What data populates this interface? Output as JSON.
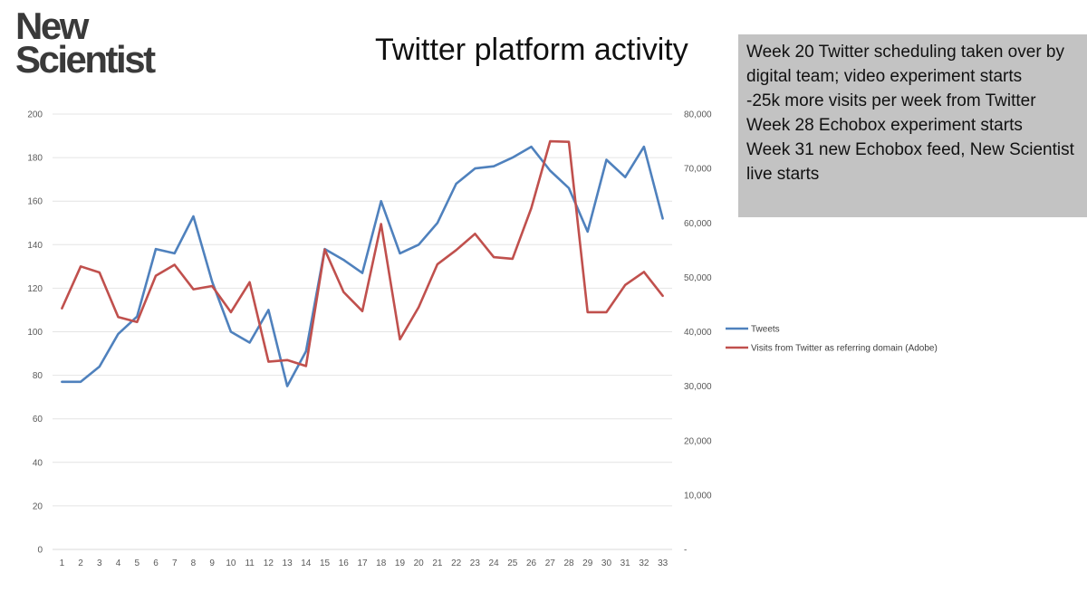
{
  "logo": {
    "line1": "New",
    "line2": "Scientist"
  },
  "title": "Twitter platform activity",
  "annotation": {
    "lines": [
      "Week 20 Twitter scheduling taken over by digital team;  video experiment starts",
      "-25k more visits per week from Twitter",
      "Week 28 Echobox experiment starts",
      "Week 31 new Echobox feed, New Scientist live starts"
    ]
  },
  "chart_data": {
    "type": "line",
    "title": "Twitter platform activity",
    "categories": [
      1,
      2,
      3,
      4,
      5,
      6,
      7,
      8,
      9,
      10,
      11,
      12,
      13,
      14,
      15,
      16,
      17,
      18,
      19,
      20,
      21,
      22,
      23,
      24,
      25,
      26,
      27,
      28,
      29,
      30,
      31,
      32,
      33
    ],
    "series": [
      {
        "name": "Tweets",
        "axis": "left",
        "color": "#4f81bd",
        "values": [
          77,
          77,
          84,
          99,
          107,
          138,
          136,
          153,
          123,
          100,
          95,
          110,
          75,
          91,
          138,
          133,
          127,
          160,
          136,
          140,
          150,
          168,
          175,
          176,
          180,
          185,
          174,
          166,
          146,
          179,
          171,
          185,
          152
        ]
      },
      {
        "name": "Visits from Twitter as referring domain (Adobe)",
        "axis": "right",
        "color": "#c0504d",
        "values": [
          44300,
          52000,
          50900,
          42700,
          41800,
          50300,
          52300,
          47800,
          48400,
          43600,
          49100,
          34500,
          34800,
          33700,
          55100,
          47300,
          43800,
          59800,
          38600,
          44500,
          52400,
          55000,
          58000,
          53700,
          53400,
          62700,
          75000,
          74900,
          43600,
          43600,
          48600,
          51000,
          46600
        ]
      }
    ],
    "left_axis": {
      "range": [
        0,
        200
      ],
      "ticks": [
        "0",
        "20",
        "40",
        "60",
        "80",
        "100",
        "120",
        "140",
        "160",
        "180",
        "200"
      ]
    },
    "right_axis": {
      "range": [
        0,
        80000
      ],
      "ticks": [
        "-",
        "10,000",
        "20,000",
        "30,000",
        "40,000",
        "50,000",
        "60,000",
        "70,000",
        "80,000"
      ]
    },
    "grid": true,
    "legend_position": "right"
  }
}
